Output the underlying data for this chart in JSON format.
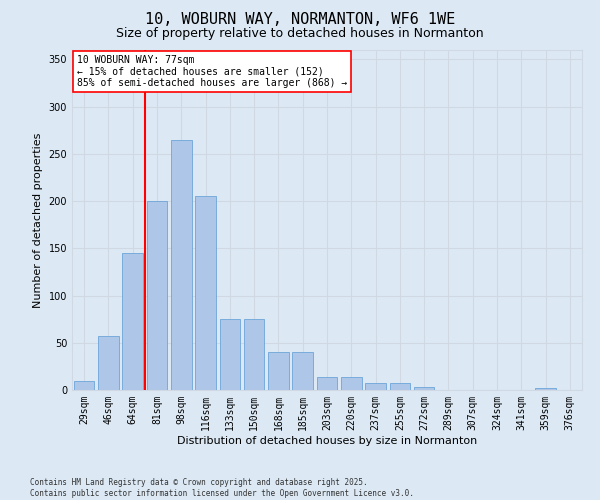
{
  "title": "10, WOBURN WAY, NORMANTON, WF6 1WE",
  "subtitle": "Size of property relative to detached houses in Normanton",
  "xlabel": "Distribution of detached houses by size in Normanton",
  "ylabel": "Number of detached properties",
  "categories": [
    "29sqm",
    "46sqm",
    "64sqm",
    "81sqm",
    "98sqm",
    "116sqm",
    "133sqm",
    "150sqm",
    "168sqm",
    "185sqm",
    "203sqm",
    "220sqm",
    "237sqm",
    "255sqm",
    "272sqm",
    "289sqm",
    "307sqm",
    "324sqm",
    "341sqm",
    "359sqm",
    "376sqm"
  ],
  "values": [
    10,
    57,
    145,
    200,
    265,
    205,
    75,
    75,
    40,
    40,
    14,
    14,
    7,
    7,
    3,
    0,
    0,
    0,
    0,
    2,
    0
  ],
  "bar_color": "#aec6e8",
  "bar_edge_color": "#5b9bd5",
  "grid_color": "#d0d8e4",
  "background_color": "#dce9f5",
  "vline_color": "red",
  "vline_index": 3,
  "ylim": [
    0,
    360
  ],
  "yticks": [
    0,
    50,
    100,
    150,
    200,
    250,
    300,
    350
  ],
  "annotation_text": "10 WOBURN WAY: 77sqm\n← 15% of detached houses are smaller (152)\n85% of semi-detached houses are larger (868) →",
  "annotation_box_color": "white",
  "annotation_box_edge": "red",
  "footer_line1": "Contains HM Land Registry data © Crown copyright and database right 2025.",
  "footer_line2": "Contains public sector information licensed under the Open Government Licence v3.0.",
  "title_fontsize": 11,
  "subtitle_fontsize": 9,
  "tick_fontsize": 7,
  "ylabel_fontsize": 8,
  "xlabel_fontsize": 8,
  "annotation_fontsize": 7,
  "footer_fontsize": 5.5
}
